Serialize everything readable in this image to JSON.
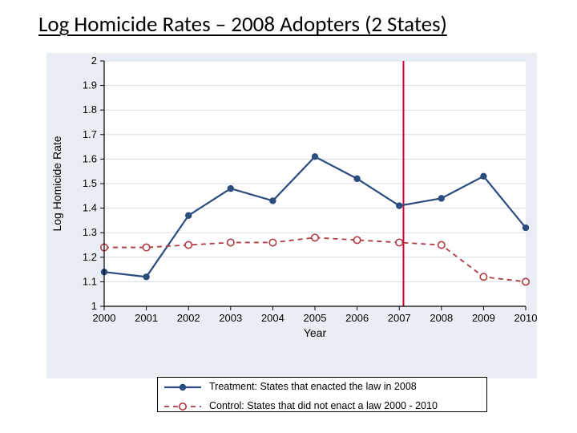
{
  "title": "Log Homicide Rates – 2008 Adopters (2 States)",
  "chart": {
    "type": "line",
    "background_color": "#e9eef4",
    "plot_background_color": "#ffffff",
    "grid_color": "#d6dde6",
    "axis_color": "#000000",
    "xlabel": "Year",
    "ylabel": "Log Homicide Rate",
    "label_fontsize": 14,
    "tick_fontsize": 13,
    "xlim": [
      2000,
      2010
    ],
    "ylim": [
      1.0,
      2.0
    ],
    "xticks": [
      2000,
      2001,
      2002,
      2003,
      2004,
      2005,
      2006,
      2007,
      2008,
      2009,
      2010
    ],
    "yticks": [
      1.0,
      1.1,
      1.2,
      1.3,
      1.4,
      1.5,
      1.6,
      1.7,
      1.8,
      1.9,
      2.0
    ],
    "vertical_ref": {
      "x": 2007.1,
      "color": "#cc0033",
      "width": 2
    },
    "series": [
      {
        "name": "treatment",
        "label": "Treatment: States that enacted the law in 2008",
        "color": "#2b4c7e",
        "line_width": 2.2,
        "dash": "none",
        "marker": "filled-circle",
        "marker_size": 4.2,
        "x": [
          2000,
          2001,
          2002,
          2003,
          2004,
          2005,
          2006,
          2007,
          2008,
          2009,
          2010
        ],
        "y": [
          1.14,
          1.12,
          1.37,
          1.48,
          1.43,
          1.61,
          1.52,
          1.41,
          1.44,
          1.53,
          1.32
        ]
      },
      {
        "name": "control",
        "label": "Control: States that did not enact a law 2000 - 2010",
        "color": "#b03a44",
        "line_width": 1.8,
        "dash": "6,5",
        "marker": "hollow-circle",
        "marker_size": 4.2,
        "x": [
          2000,
          2001,
          2002,
          2003,
          2004,
          2005,
          2006,
          2007,
          2008,
          2009,
          2010
        ],
        "y": [
          1.24,
          1.24,
          1.25,
          1.26,
          1.26,
          1.28,
          1.27,
          1.26,
          1.25,
          1.12,
          1.1
        ]
      }
    ]
  },
  "legend": {
    "treatment_label": "Treatment: States that enacted the law in 2008",
    "control_label": "Control: States that did not enact a law 2000 - 2010"
  }
}
